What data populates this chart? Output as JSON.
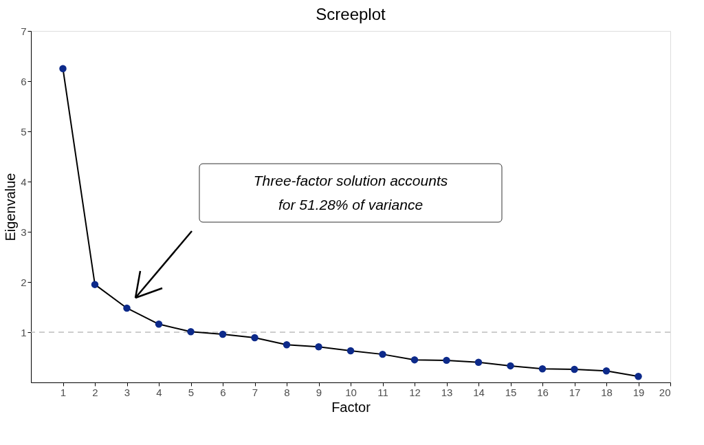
{
  "chart_data": {
    "type": "line",
    "title": "Screeplot",
    "xlabel": "Factor",
    "ylabel": "Eigenvalue",
    "x": [
      1,
      2,
      3,
      4,
      5,
      6,
      7,
      8,
      9,
      10,
      11,
      12,
      13,
      14,
      15,
      16,
      17,
      18,
      19
    ],
    "series": [
      {
        "color": "#0d2a8a",
        "values": [
          6.25,
          1.95,
          1.48,
          1.16,
          1.01,
          0.96,
          0.89,
          0.75,
          0.71,
          0.63,
          0.56,
          0.45,
          0.44,
          0.4,
          0.33,
          0.27,
          0.26,
          0.23,
          0.12
        ]
      }
    ],
    "xlim": [
      0,
      20
    ],
    "xticks": [
      1,
      2,
      3,
      4,
      5,
      6,
      7,
      8,
      9,
      10,
      11,
      12,
      13,
      14,
      15,
      16,
      17,
      18,
      19,
      20
    ],
    "ylim": [
      0,
      7
    ],
    "yticks": [
      1,
      2,
      3,
      4,
      5,
      6,
      7
    ],
    "ref_lines": [
      {
        "axis": "y",
        "value": 1,
        "color": "#bdbdbd",
        "line_style": "dashed"
      }
    ],
    "annotations": [
      "Three-factor solution accounts\nfor 51.28% of variance"
    ],
    "marker": "circle",
    "line_style": "solid",
    "grid": false
  }
}
